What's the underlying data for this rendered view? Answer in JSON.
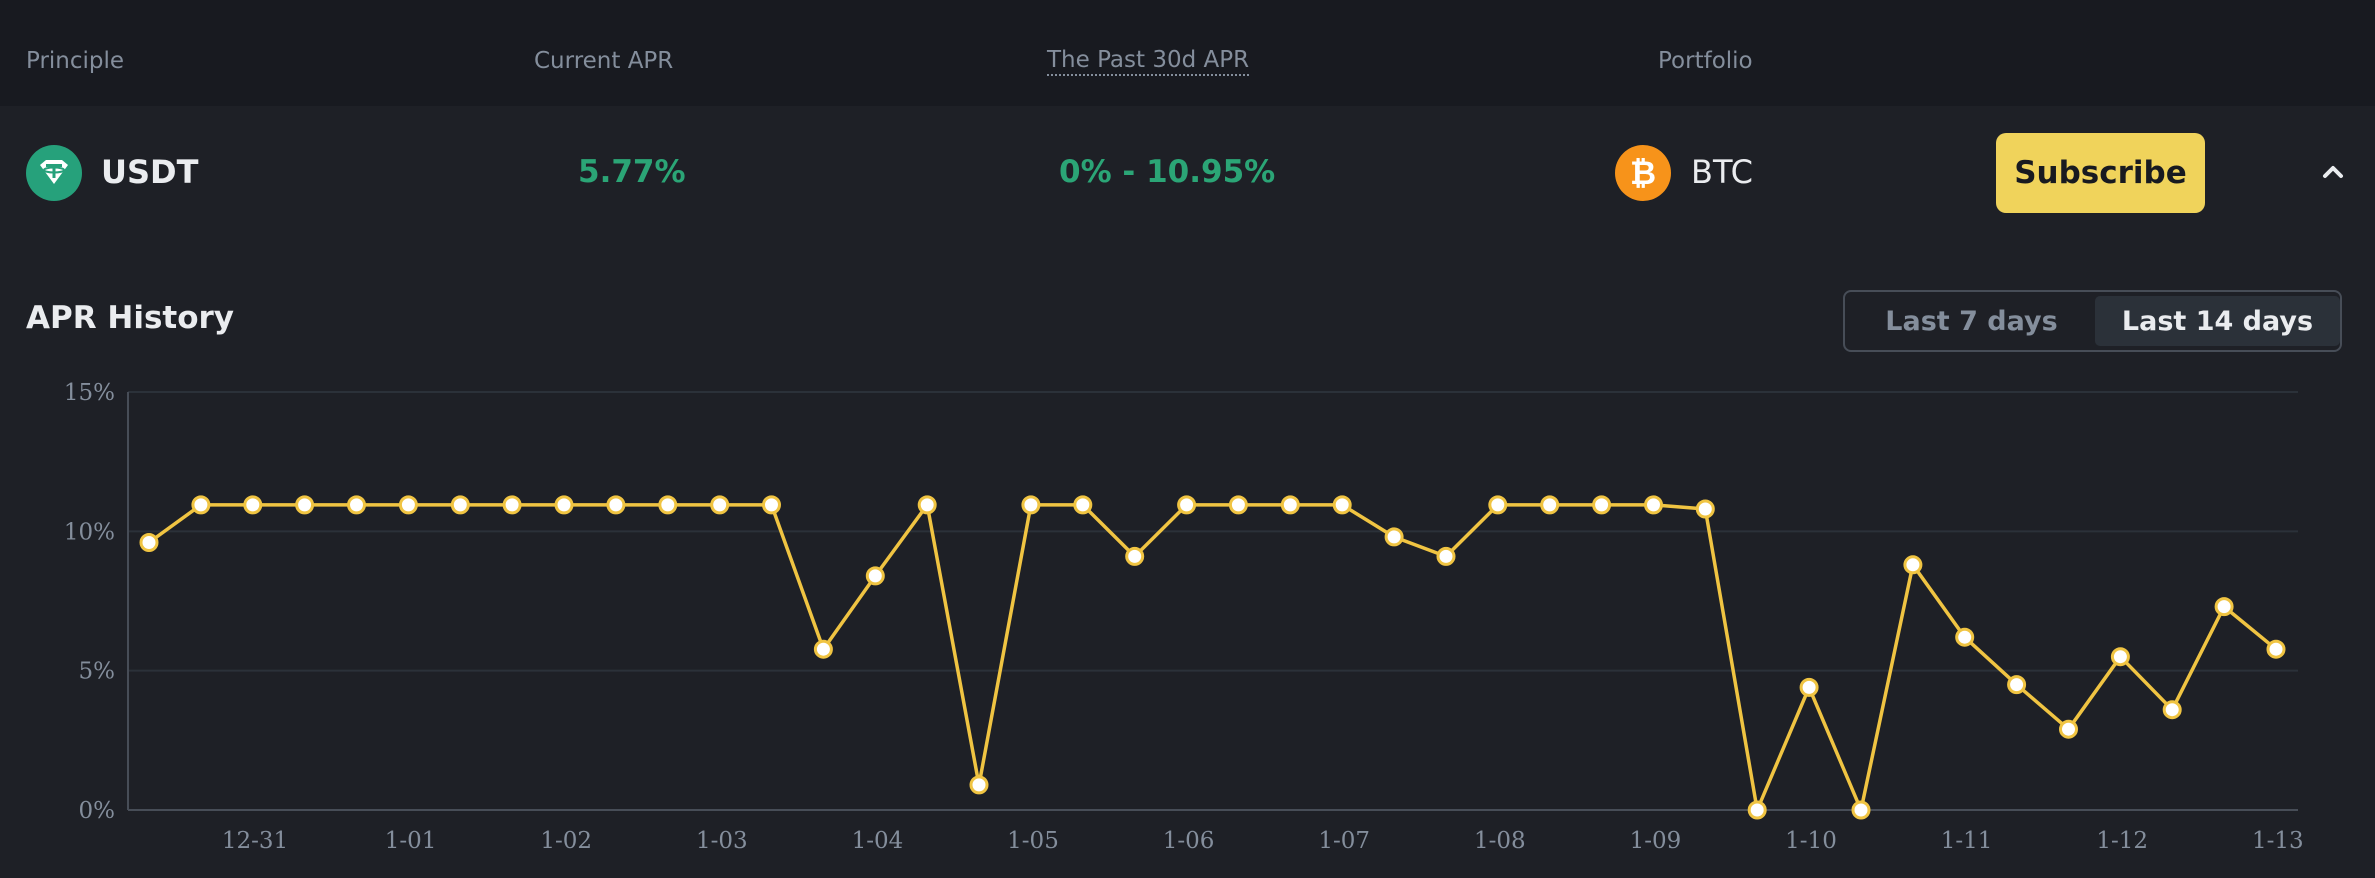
{
  "header": {
    "principle": "Principle",
    "current_apr": "Current APR",
    "past_apr": "The Past 30d APR",
    "portfolio": "Portfolio"
  },
  "row": {
    "coin": "USDT",
    "current_apr": "5.77%",
    "past_range": "0% - 10.95%",
    "portfolio_coin": "BTC",
    "subscribe_label": "Subscribe",
    "expanded": true
  },
  "history": {
    "title": "APR History",
    "options": [
      "Last 7 days",
      "Last 14 days"
    ],
    "selected": "Last 14 days"
  },
  "colors": {
    "line": "#f0c442",
    "accent_green": "#2ebd85",
    "button": "#f0d35b",
    "usdt": "#26a17b",
    "btc": "#f7931a"
  },
  "chart_data": {
    "type": "line",
    "x_labels": [
      "12-31",
      "1-01",
      "1-02",
      "1-03",
      "1-04",
      "1-05",
      "1-06",
      "1-07",
      "1-08",
      "1-09",
      "1-10",
      "1-11",
      "1-12",
      "1-13"
    ],
    "y_ticks": [
      "0%",
      "5%",
      "10%",
      "15%"
    ],
    "ylim": [
      0,
      15
    ],
    "grid": true,
    "series": [
      {
        "values": [
          9.6,
          10.95,
          10.95,
          10.95,
          10.95,
          10.95,
          10.95,
          10.95,
          10.95,
          10.95,
          10.95,
          10.95,
          10.95,
          5.77,
          8.4,
          10.95,
          0.9,
          10.95,
          10.95,
          9.1,
          10.95,
          10.95,
          10.95,
          10.95,
          9.8,
          9.1,
          10.95,
          10.95,
          10.95,
          10.95,
          10.8,
          0,
          4.4,
          0,
          8.8,
          6.2,
          4.5,
          2.9,
          5.5,
          3.6,
          7.3,
          5.77
        ]
      }
    ]
  }
}
